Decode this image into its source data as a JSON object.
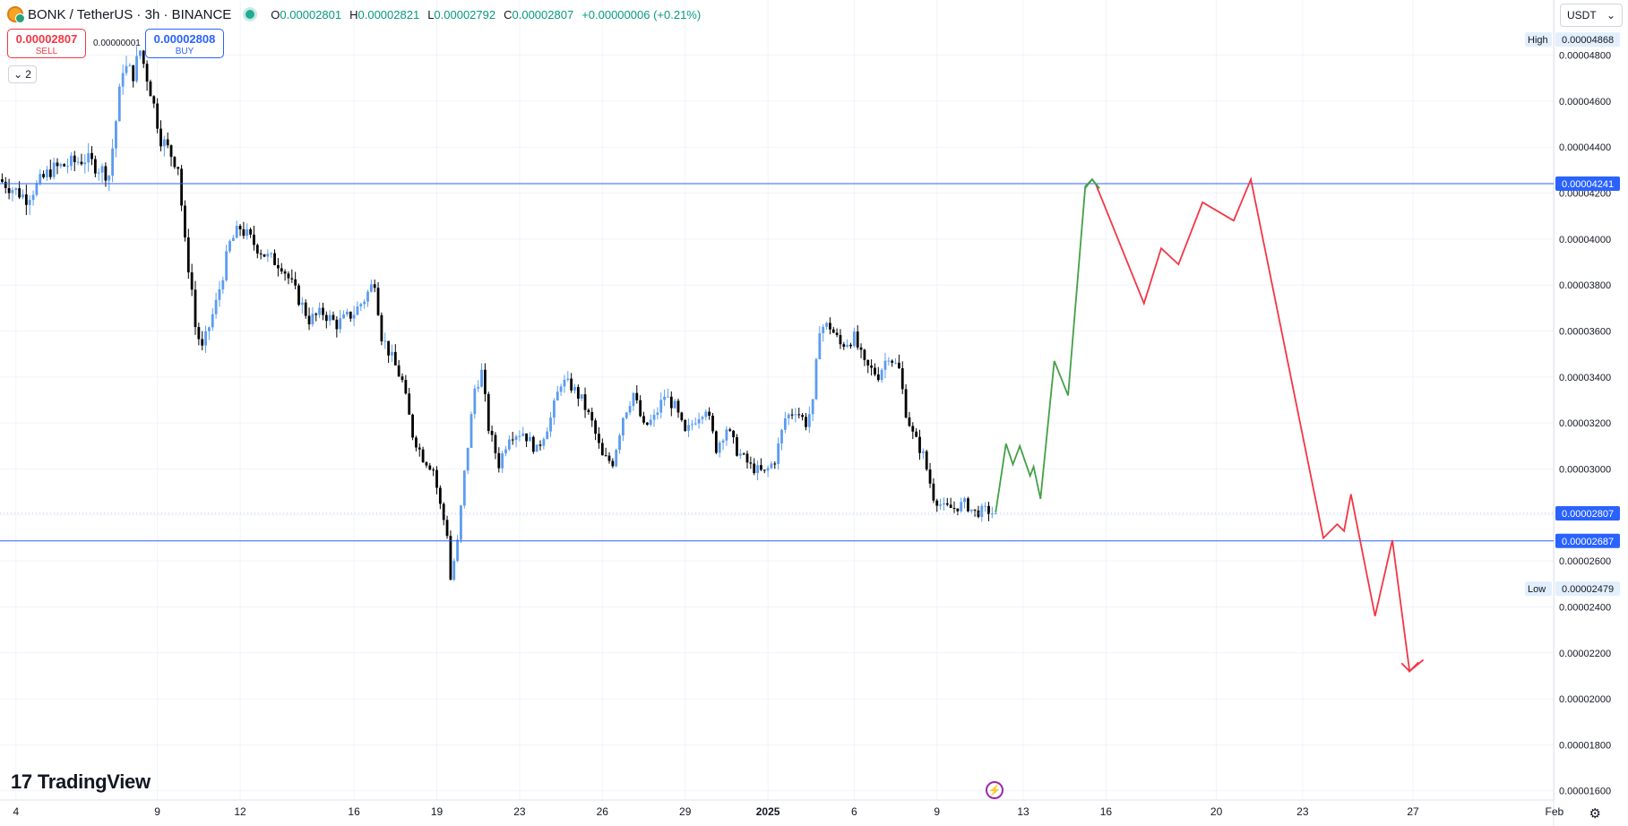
{
  "header": {
    "title": "BONK / TetherUS · 3h · BINANCE",
    "open_label": "O",
    "open": "0.00002801",
    "high_label": "H",
    "high": "0.00002821",
    "low_label": "L",
    "low": "0.00002792",
    "close_label": "C",
    "close": "0.00002807",
    "change": "+0.00000006 (+0.21%)"
  },
  "trade": {
    "sell_price": "0.00002807",
    "sell_label": "SELL",
    "buy_price": "0.00002808",
    "buy_label": "BUY",
    "spread": "0.00000001"
  },
  "collapse_label": "2",
  "currency": "USDT",
  "logo_text": "TradingView",
  "colors": {
    "up": "#5b9cf0",
    "down": "#000000",
    "level": "#2962ff",
    "up_path": "#43a047",
    "down_path": "#f23645",
    "grid": "#f0f3fa"
  },
  "chart_data": {
    "type": "candlestick",
    "symbol": "BONK / TetherUS",
    "interval": "3h",
    "exchange": "BINANCE",
    "ylim": [
      1.56e-05,
      5.04e-05
    ],
    "y_ticks": [
      {
        "value": 4.8e-05,
        "label": "0.00004800"
      },
      {
        "value": 4.6e-05,
        "label": "0.00004600"
      },
      {
        "value": 4.4e-05,
        "label": "0.00004400"
      },
      {
        "value": 4.2e-05,
        "label": "0.00004200"
      },
      {
        "value": 4e-05,
        "label": "0.00004000"
      },
      {
        "value": 3.8e-05,
        "label": "0.00003800"
      },
      {
        "value": 3.6e-05,
        "label": "0.00003600"
      },
      {
        "value": 3.4e-05,
        "label": "0.00003400"
      },
      {
        "value": 3.2e-05,
        "label": "0.00003200"
      },
      {
        "value": 3e-05,
        "label": "0.00003000"
      },
      {
        "value": 2.8e-05,
        "label": "0.00002800"
      },
      {
        "value": 2.6e-05,
        "label": "0.00002600"
      },
      {
        "value": 2.4e-05,
        "label": "0.00002400"
      },
      {
        "value": 2.2e-05,
        "label": "0.00002200"
      },
      {
        "value": 2e-05,
        "label": "0.00002000"
      },
      {
        "value": 1.8e-05,
        "label": "0.00001800"
      },
      {
        "value": 1.6e-05,
        "label": "0.00001600"
      }
    ],
    "x_ticks": [
      {
        "bar": 4,
        "label": "4",
        "bold": false
      },
      {
        "bar": 45,
        "label": "9",
        "bold": false
      },
      {
        "bar": 69,
        "label": "12",
        "bold": false
      },
      {
        "bar": 102,
        "label": "16",
        "bold": false
      },
      {
        "bar": 126,
        "label": "19",
        "bold": false
      },
      {
        "bar": 150,
        "label": "23",
        "bold": false
      },
      {
        "bar": 174,
        "label": "26",
        "bold": false
      },
      {
        "bar": 198,
        "label": "29",
        "bold": false
      },
      {
        "bar": 222,
        "label": "2025",
        "bold": true
      },
      {
        "bar": 247,
        "label": "6",
        "bold": false
      },
      {
        "bar": 271,
        "label": "9",
        "bold": false
      },
      {
        "bar": 296,
        "label": "13",
        "bold": false
      },
      {
        "bar": 320,
        "label": "16",
        "bold": false
      },
      {
        "bar": 352,
        "label": "20",
        "bold": false
      },
      {
        "bar": 377,
        "label": "23",
        "bold": false
      },
      {
        "bar": 409,
        "label": "27",
        "bold": false
      },
      {
        "bar": 450,
        "label": "Feb",
        "bold": false
      }
    ],
    "price_path": [
      [
        0,
        4.26e-05
      ],
      [
        8,
        4.18e-05
      ],
      [
        15,
        4.3e-05
      ],
      [
        25,
        4.35e-05
      ],
      [
        32,
        4.28e-05
      ],
      [
        36,
        4.75e-05
      ],
      [
        39,
        4.72e-05
      ],
      [
        41,
        4.82e-05
      ],
      [
        44,
        4.65e-05
      ],
      [
        47,
        4.44e-05
      ],
      [
        52,
        4.32e-05
      ],
      [
        54,
        3.98e-05
      ],
      [
        56,
        3.78e-05
      ],
      [
        57,
        3.62e-05
      ],
      [
        59,
        3.52e-05
      ],
      [
        63,
        3.72e-05
      ],
      [
        67,
        3.98e-05
      ],
      [
        70,
        4.05e-05
      ],
      [
        74,
        3.98e-05
      ],
      [
        78,
        3.92e-05
      ],
      [
        82,
        3.89e-05
      ],
      [
        86,
        3.77e-05
      ],
      [
        90,
        3.65e-05
      ],
      [
        94,
        3.68e-05
      ],
      [
        98,
        3.63e-05
      ],
      [
        103,
        3.68e-05
      ],
      [
        106,
        3.74e-05
      ],
      [
        109,
        3.82e-05
      ],
      [
        111,
        3.58e-05
      ],
      [
        114,
        3.48e-05
      ],
      [
        117,
        3.38e-05
      ],
      [
        120,
        3.15e-05
      ],
      [
        123,
        3.05e-05
      ],
      [
        126,
        3e-05
      ],
      [
        128,
        2.84e-05
      ],
      [
        130,
        2.72e-05
      ],
      [
        131,
        2.52e-05
      ],
      [
        133,
        2.68e-05
      ],
      [
        135,
        2.98e-05
      ],
      [
        138,
        3.35e-05
      ],
      [
        140,
        3.42e-05
      ],
      [
        142,
        3.18e-05
      ],
      [
        145,
        3.02e-05
      ],
      [
        148,
        3.15e-05
      ],
      [
        152,
        3.16e-05
      ],
      [
        156,
        3.08e-05
      ],
      [
        160,
        3.22e-05
      ],
      [
        163,
        3.38e-05
      ],
      [
        166,
        3.36e-05
      ],
      [
        169,
        3.3e-05
      ],
      [
        172,
        3.2e-05
      ],
      [
        175,
        3.05e-05
      ],
      [
        178,
        3.03e-05
      ],
      [
        181,
        3.23e-05
      ],
      [
        184,
        3.33e-05
      ],
      [
        187,
        3.18e-05
      ],
      [
        190,
        3.22e-05
      ],
      [
        193,
        3.32e-05
      ],
      [
        196,
        3.27e-05
      ],
      [
        199,
        3.15e-05
      ],
      [
        202,
        3.22e-05
      ],
      [
        205,
        3.27e-05
      ],
      [
        208,
        3.09e-05
      ],
      [
        211,
        3.18e-05
      ],
      [
        214,
        3.08e-05
      ],
      [
        218,
        3.01e-05
      ],
      [
        222,
        2.98e-05
      ],
      [
        225,
        3.04e-05
      ],
      [
        228,
        3.22e-05
      ],
      [
        231,
        3.26e-05
      ],
      [
        234,
        3.2e-05
      ],
      [
        236,
        3.28e-05
      ],
      [
        238,
        3.62e-05
      ],
      [
        241,
        3.62e-05
      ],
      [
        244,
        3.54e-05
      ],
      [
        248,
        3.57e-05
      ],
      [
        251,
        3.45e-05
      ],
      [
        255,
        3.41e-05
      ],
      [
        258,
        3.5e-05
      ],
      [
        261,
        3.43e-05
      ],
      [
        263,
        3.25e-05
      ],
      [
        265,
        3.15e-05
      ],
      [
        268,
        3.06e-05
      ],
      [
        271,
        2.88e-05
      ],
      [
        274,
        2.83e-05
      ],
      [
        277,
        2.83e-05
      ],
      [
        280,
        2.85e-05
      ],
      [
        283,
        2.81e-05
      ],
      [
        286,
        2.82e-05
      ],
      [
        288,
        2.81e-05
      ]
    ],
    "annotations": {
      "resistance": {
        "value": 4.241e-05,
        "label": "0.00004241"
      },
      "support": {
        "value": 2.687e-05,
        "label": "0.00002687"
      },
      "current": {
        "value": 2.807e-05,
        "label": "0.00002807"
      },
      "high_marker": {
        "label": "High",
        "value": 4.868e-05,
        "value_label": "0.00004868"
      },
      "low_marker": {
        "label": "Low",
        "value": 2.479e-05,
        "value_label": "0.00002479"
      },
      "green_path": [
        [
          288,
          2.81e-05
        ],
        [
          291,
          3.11e-05
        ],
        [
          293,
          3.02e-05
        ],
        [
          295,
          3.1e-05
        ],
        [
          298,
          2.97e-05
        ],
        [
          299,
          3.01e-05
        ],
        [
          301,
          2.87e-05
        ],
        [
          305,
          3.47e-05
        ],
        [
          309,
          3.32e-05
        ],
        [
          314,
          4.23e-05
        ],
        [
          316,
          4.26e-05
        ],
        [
          318,
          4.22e-05
        ]
      ],
      "red_path": [
        [
          317,
          4.24e-05
        ],
        [
          331,
          3.72e-05
        ],
        [
          336,
          3.96e-05
        ],
        [
          341,
          3.89e-05
        ],
        [
          348,
          4.16e-05
        ],
        [
          357,
          4.08e-05
        ],
        [
          362,
          4.26e-05
        ],
        [
          383,
          2.7e-05
        ],
        [
          387,
          2.76e-05
        ],
        [
          389,
          2.73e-05
        ],
        [
          391,
          2.89e-05
        ],
        [
          398,
          2.36e-05
        ],
        [
          403,
          2.69e-05
        ],
        [
          408,
          2.12e-05
        ],
        [
          412,
          2.17e-05
        ]
      ]
    }
  }
}
